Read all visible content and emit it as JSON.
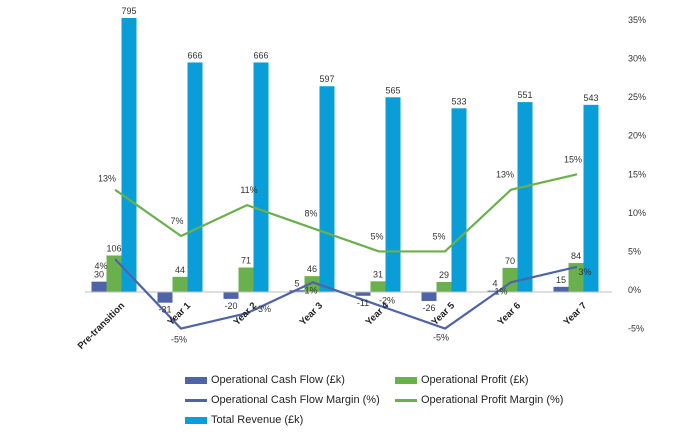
{
  "chart_data": {
    "type": "bar+line",
    "categories": [
      "Pre-transition",
      "Year 1",
      "Year 2",
      "Year 3",
      "Year 4",
      "Year 5",
      "Year 6",
      "Year 7"
    ],
    "bar_series": [
      {
        "name": "Operational Cash Flow (£k)",
        "color": "#4f63a7",
        "values": [
          30,
          -31,
          -20,
          5,
          -11,
          -26,
          4,
          15
        ],
        "labels": [
          "30",
          "-31",
          "-20",
          "5",
          "-11",
          "-26",
          "4",
          "15"
        ]
      },
      {
        "name": "Operational Profit (£k)",
        "color": "#6ab04c",
        "values": [
          106,
          44,
          71,
          46,
          31,
          29,
          70,
          84
        ],
        "labels": [
          "106",
          "44",
          "71",
          "46",
          "31",
          "29",
          "70",
          "84"
        ]
      },
      {
        "name": "Total Revenue (£k)",
        "color": "#0a9ed8",
        "values": [
          795,
          666,
          666,
          597,
          565,
          533,
          551,
          543
        ],
        "labels": [
          "795",
          "666",
          "666",
          "597",
          "565",
          "533",
          "551",
          "543"
        ]
      }
    ],
    "line_series": [
      {
        "name": "Operational Cash Flow Margin (%)",
        "color": "#4f63a7",
        "values": [
          4,
          -5,
          -3,
          1,
          -2,
          -5,
          1,
          3
        ],
        "labels": [
          "4%",
          "-5%",
          "-3%",
          "1%",
          "-2%",
          "-5%",
          "1%",
          "3%"
        ]
      },
      {
        "name": "Operational Profit Margin (%)",
        "color": "#6ab04c",
        "values": [
          13,
          7,
          11,
          8,
          5,
          5,
          13,
          15
        ],
        "labels": [
          "13%",
          "7%",
          "11%",
          "8%",
          "5%",
          "5%",
          "13%",
          "15%"
        ]
      }
    ],
    "y2_ticks": [
      "35%",
      "30%",
      "25%",
      "20%",
      "15%",
      "10%",
      "5%",
      "0%",
      "-5%"
    ],
    "y2lim": [
      -5,
      35
    ],
    "legend": {
      "position": "bottom",
      "items": [
        {
          "label": "Operational Cash Flow (£k)",
          "kind": "bar",
          "color": "#4f63a7"
        },
        {
          "label": "Operational Profit (£k)",
          "kind": "bar",
          "color": "#6ab04c"
        },
        {
          "label": "Operational Cash Flow Margin (%)",
          "kind": "line",
          "color": "#4f63a7"
        },
        {
          "label": "Operational Profit Margin (%)",
          "kind": "line",
          "color": "#6ab04c"
        },
        {
          "label": "Total Revenue (£k)",
          "kind": "bar",
          "color": "#0a9ed8"
        }
      ]
    }
  }
}
